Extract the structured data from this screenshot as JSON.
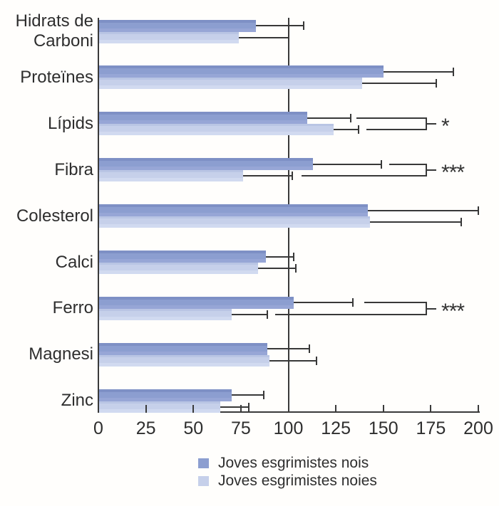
{
  "chart_data": {
    "type": "bar",
    "orientation": "horizontal",
    "title": "",
    "xlabel": "",
    "ylabel": "",
    "categories": [
      "Hidrats de Carboni",
      "Proteïnes",
      "Lípids",
      "Fibra",
      "Colesterol",
      "Calci",
      "Ferro",
      "Magnesi",
      "Zinc"
    ],
    "series": [
      {
        "name": "Joves esgrimistes nois",
        "color": "#8c9ed0",
        "values": [
          83,
          150,
          110,
          113,
          142,
          88,
          103,
          89,
          70
        ],
        "error_high": [
          108,
          187,
          133,
          149,
          200,
          103,
          134,
          111,
          87
        ]
      },
      {
        "name": "Joves esgrimistes noies",
        "color": "#c6d0ea",
        "values": [
          74,
          139,
          124,
          76,
          143,
          84,
          70,
          90,
          64
        ],
        "error_high": [
          100,
          178,
          137,
          102,
          191,
          104,
          89,
          115,
          79
        ]
      }
    ],
    "xlim": [
      0,
      200
    ],
    "x_ticks": [
      0,
      25,
      50,
      75,
      100,
      125,
      150,
      175,
      200
    ],
    "reference_line_x": 100,
    "grid": false,
    "legend_position": "bottom",
    "significance": [
      {
        "category": "Lípids",
        "label": "*",
        "bracket_from_top": 136,
        "bracket_from_bottom": 141,
        "bracket_x": 173
      },
      {
        "category": "Fibra",
        "label": "***",
        "bracket_from_top": 153,
        "bracket_from_bottom": 107,
        "bracket_x": 173
      },
      {
        "category": "Ferro",
        "label": "***",
        "bracket_from_top": 140,
        "bracket_from_bottom": 93,
        "bracket_x": 173
      }
    ]
  },
  "legend": {
    "items": [
      {
        "label": "Joves esgrimistes nois",
        "color": "#8c9ed0"
      },
      {
        "label": "Joves esgrimistes noies",
        "color": "#c6d0ea"
      }
    ]
  },
  "colors": {
    "axis": "#3a3a3a",
    "text": "#2e2e2e",
    "bar_dark": "#8c9ed0",
    "bar_light": "#c6d0ea",
    "background": "#fffefc"
  }
}
